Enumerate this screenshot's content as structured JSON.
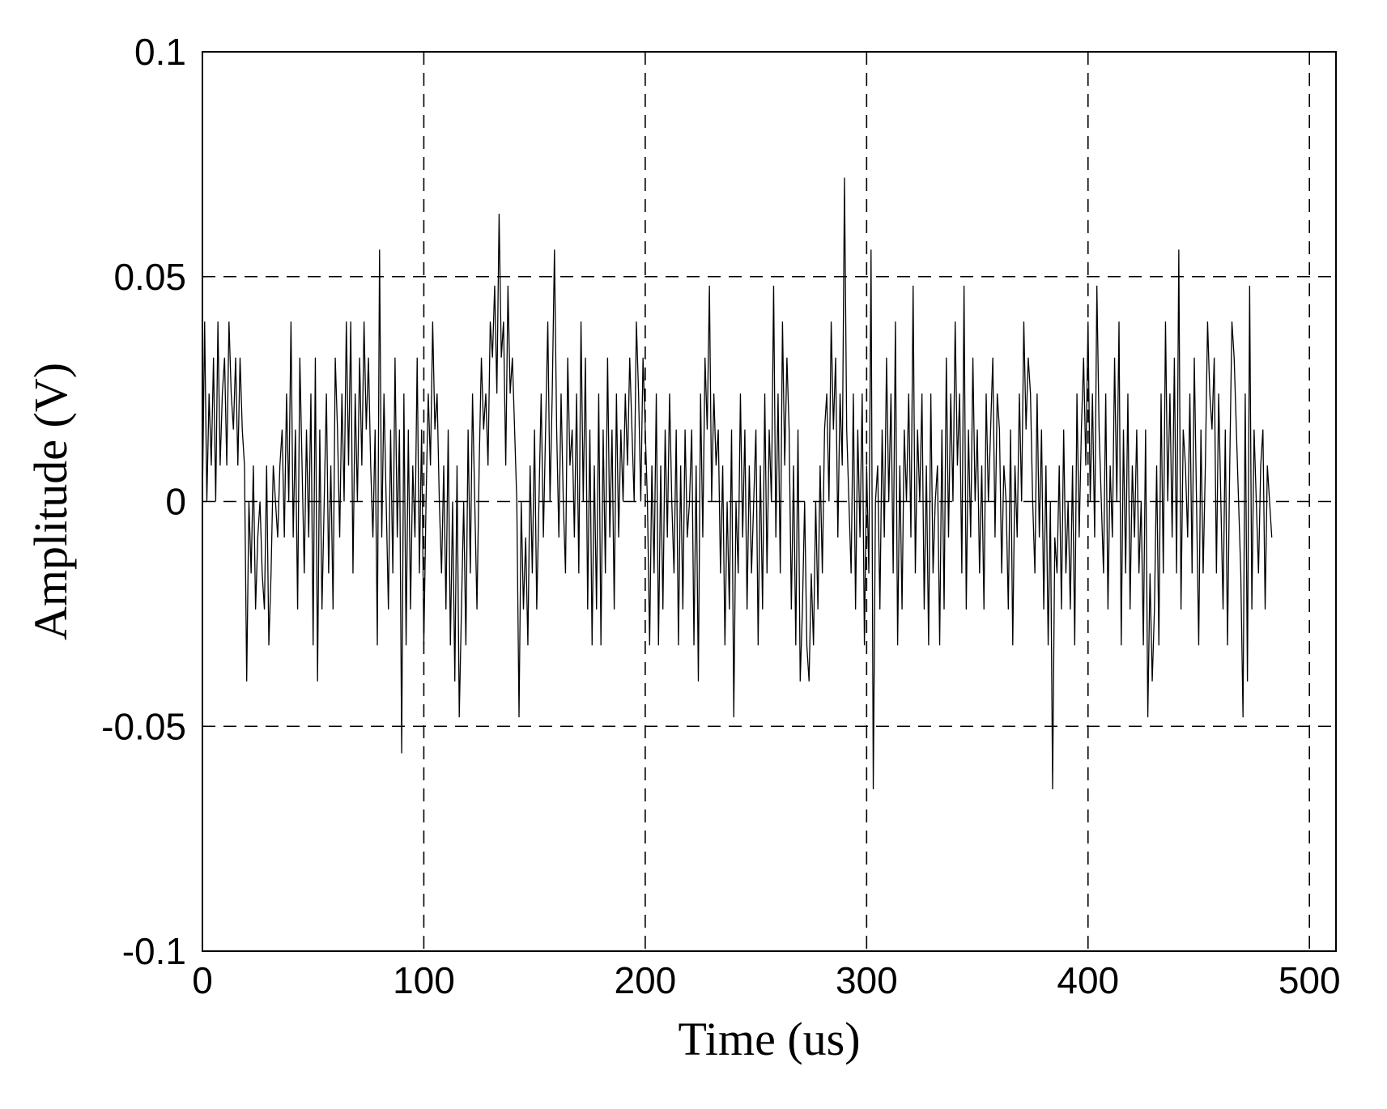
{
  "chart_data": {
    "type": "line",
    "title": "",
    "xlabel": "Time (us)",
    "ylabel": "Amplitude (V)",
    "xlim": [
      0,
      512
    ],
    "ylim": [
      -0.1,
      0.1
    ],
    "x_ticks": [
      0,
      100,
      200,
      300,
      400,
      500
    ],
    "x_tick_labels": [
      "0",
      "100",
      "200",
      "300",
      "400",
      "500"
    ],
    "y_ticks": [
      -0.1,
      -0.05,
      0,
      0.05,
      0.1
    ],
    "y_tick_labels": [
      "-0.1",
      "-0.05",
      "0",
      "0.05",
      "0.1"
    ],
    "grid": true,
    "grid_style": "dashed",
    "line_color": "#000000",
    "sample_interval_us": 1,
    "quantization_step_V": 0.008,
    "series": [
      {
        "values": [
          0.0,
          0.04,
          0.0,
          0.024,
          0.008,
          0.032,
          0.0,
          0.04,
          0.008,
          0.024,
          0.032,
          0.008,
          0.04,
          0.024,
          0.016,
          0.032,
          0.008,
          0.032,
          0.016,
          0.008,
          -0.04,
          0.0,
          -0.016,
          0.008,
          -0.024,
          -0.008,
          0.0,
          -0.016,
          -0.024,
          0.008,
          -0.032,
          -0.016,
          0.008,
          0.0,
          -0.008,
          0.008,
          0.016,
          -0.008,
          0.024,
          0.0,
          0.04,
          -0.008,
          0.016,
          -0.024,
          0.032,
          0.008,
          -0.016,
          0.016,
          -0.008,
          0.024,
          -0.032,
          0.032,
          -0.04,
          0.016,
          -0.024,
          0.0,
          0.024,
          -0.016,
          0.008,
          -0.024,
          0.032,
          0.016,
          -0.008,
          0.024,
          0.0,
          0.04,
          0.008,
          0.04,
          -0.016,
          0.024,
          0.0,
          0.032,
          0.008,
          0.04,
          0.016,
          0.032,
          0.008,
          -0.008,
          0.016,
          -0.032,
          0.056,
          -0.008,
          0.024,
          0.0,
          -0.024,
          0.016,
          -0.016,
          0.032,
          -0.008,
          0.016,
          -0.056,
          0.024,
          -0.032,
          0.016,
          -0.024,
          0.008,
          -0.008,
          0.032,
          -0.016,
          0.016,
          -0.032,
          0.0,
          0.024,
          0.008,
          0.04,
          0.016,
          0.024,
          0.0,
          -0.016,
          0.008,
          -0.024,
          0.016,
          -0.032,
          0.0,
          -0.04,
          0.008,
          -0.048,
          -0.024,
          0.0,
          -0.032,
          0.016,
          -0.016,
          0.024,
          0.0,
          -0.024,
          0.008,
          0.032,
          0.016,
          0.024,
          0.008,
          0.04,
          0.032,
          0.048,
          0.024,
          0.064,
          0.032,
          0.04,
          0.008,
          0.048,
          0.024,
          0.032,
          0.016,
          0.0,
          -0.048,
          0.0,
          -0.024,
          -0.008,
          -0.032,
          0.008,
          -0.016,
          0.016,
          -0.024,
          0.0,
          0.024,
          -0.008,
          0.016,
          0.04,
          0.0,
          0.024,
          0.056,
          0.016,
          -0.008,
          0.024,
          0.0,
          -0.016,
          0.032,
          0.008,
          0.016,
          -0.008,
          0.024,
          -0.016,
          0.04,
          0.0,
          0.032,
          -0.024,
          0.016,
          -0.032,
          0.008,
          -0.024,
          0.024,
          -0.032,
          0.016,
          -0.016,
          0.032,
          -0.008,
          0.016,
          -0.024,
          0.024,
          -0.008,
          0.016,
          0.0,
          0.024,
          0.008,
          0.032,
          0.016,
          0.0,
          0.04,
          0.024,
          0.0,
          0.032,
          0.016,
          0.0,
          -0.032,
          0.008,
          -0.016,
          0.024,
          -0.032,
          0.008,
          -0.024,
          0.016,
          -0.008,
          0.024,
          0.0,
          -0.016,
          0.016,
          -0.032,
          0.008,
          -0.024,
          0.016,
          -0.008,
          0.0,
          0.016,
          -0.032,
          0.008,
          -0.04,
          0.024,
          -0.008,
          0.032,
          0.016,
          0.048,
          0.0,
          0.024,
          0.008,
          0.016,
          -0.016,
          0.008,
          -0.032,
          0.0,
          -0.024,
          0.016,
          -0.048,
          0.0,
          -0.016,
          0.024,
          -0.008,
          0.016,
          -0.024,
          0.008,
          -0.016,
          0.0,
          0.016,
          -0.032,
          0.008,
          -0.024,
          0.024,
          -0.016,
          0.016,
          0.0,
          0.048,
          -0.008,
          0.024,
          -0.016,
          0.04,
          0.008,
          0.032,
          0.016,
          -0.024,
          0.008,
          -0.032,
          0.016,
          -0.04,
          -0.024,
          0.0,
          -0.032,
          -0.04,
          -0.016,
          -0.032,
          0.0,
          -0.024,
          0.008,
          -0.016,
          0.016,
          0.024,
          0.0,
          0.04,
          0.016,
          0.032,
          -0.008,
          0.024,
          0.008,
          0.072,
          0.016,
          0.0,
          -0.016,
          0.024,
          -0.024,
          0.016,
          -0.008,
          0.024,
          -0.032,
          0.008,
          -0.016,
          0.056,
          -0.064,
          0.0,
          0.008,
          -0.024,
          0.016,
          -0.008,
          0.032,
          0.0,
          0.024,
          -0.016,
          0.04,
          -0.032,
          0.008,
          -0.024,
          0.016,
          0.0,
          0.024,
          -0.008,
          0.048,
          -0.016,
          0.016,
          0.0,
          0.024,
          -0.024,
          0.008,
          -0.032,
          0.024,
          -0.016,
          0.0,
          0.008,
          -0.032,
          0.016,
          -0.024,
          0.032,
          -0.008,
          0.024,
          0.0,
          0.04,
          0.008,
          0.024,
          -0.016,
          0.048,
          -0.024,
          0.016,
          -0.008,
          0.032,
          0.0,
          0.016,
          -0.016,
          0.008,
          -0.024,
          0.024,
          0.0,
          0.016,
          0.032,
          -0.008,
          0.024,
          0.016,
          -0.016,
          0.008,
          0.0,
          -0.024,
          0.016,
          -0.032,
          0.008,
          -0.008,
          0.024,
          0.0,
          0.04,
          0.016,
          0.032,
          0.024,
          0.0,
          -0.016,
          0.024,
          -0.008,
          0.016,
          -0.024,
          0.008,
          -0.032,
          0.0,
          -0.064,
          -0.008,
          -0.016,
          0.008,
          -0.024,
          0.016,
          -0.016,
          0.0,
          -0.024,
          0.008,
          -0.032,
          0.024,
          -0.008,
          0.016,
          0.032,
          0.008,
          0.04,
          0.0,
          0.024,
          -0.008,
          0.048,
          0.016,
          0.0,
          -0.016,
          0.024,
          -0.024,
          0.008,
          -0.008,
          0.032,
          0.0,
          0.04,
          -0.032,
          0.016,
          -0.016,
          0.024,
          -0.024,
          0.008,
          -0.008,
          0.016,
          -0.016,
          0.0,
          -0.032,
          0.016,
          -0.048,
          -0.016,
          -0.04,
          -0.024,
          0.008,
          -0.032,
          0.024,
          -0.016,
          0.04,
          0.0,
          0.024,
          -0.008,
          0.032,
          -0.016,
          0.056,
          -0.024,
          0.016,
          0.008,
          -0.008,
          0.024,
          -0.016,
          0.032,
          0.0,
          -0.032,
          0.016,
          -0.016,
          0.008,
          0.04,
          0.024,
          0.016,
          0.032,
          -0.016,
          0.024,
          0.0,
          -0.024,
          0.016,
          -0.032,
          0.008,
          0.04,
          0.032,
          0.016,
          0.0,
          -0.016,
          -0.048,
          0.024,
          -0.04,
          0.048,
          -0.024,
          0.016,
          0.0,
          -0.016,
          0.008,
          0.016,
          -0.024,
          0.008,
          0.0,
          -0.008
        ]
      }
    ]
  }
}
